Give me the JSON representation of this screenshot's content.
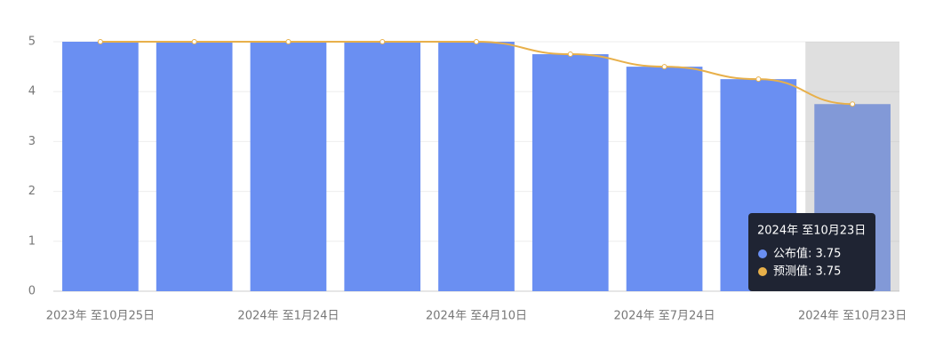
{
  "chart_data": {
    "type": "bar",
    "categories": [
      "2023年 至10月25日",
      null,
      "2024年 至1月24日",
      null,
      "2024年 至4月10日",
      null,
      "2024年 至7月24日",
      null,
      "2024年 至10月23日"
    ],
    "series": [
      {
        "name": "公布值",
        "type": "bar",
        "color": "#6a8ff2",
        "values": [
          5,
          5,
          5,
          5,
          5,
          4.75,
          4.5,
          4.25,
          3.75
        ]
      },
      {
        "name": "预测值",
        "type": "line",
        "color": "#e8b04a",
        "values": [
          5,
          5,
          5,
          5,
          5,
          4.75,
          4.5,
          4.25,
          3.75
        ]
      }
    ],
    "ylim": [
      0,
      5
    ],
    "yticks": [
      0,
      1,
      2,
      3,
      4,
      5
    ],
    "grid": true,
    "highlight_index": 8,
    "tooltip": {
      "title": "2024年 至10月23日",
      "items": [
        "公布值: 3.75",
        "预测值: 3.75"
      ]
    }
  }
}
